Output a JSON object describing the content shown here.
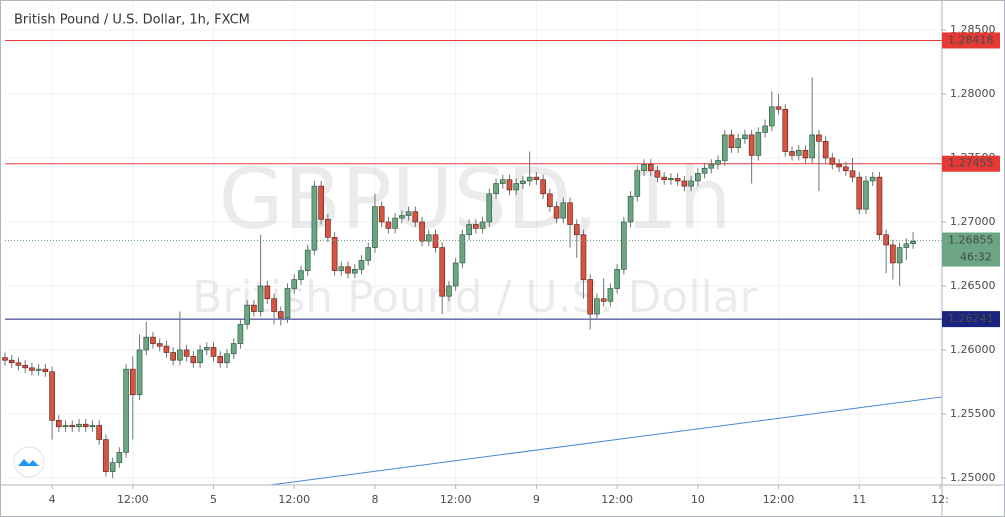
{
  "chart_data": {
    "type": "candlestick",
    "title": "British Pound / U.S. Dollar, 1h, FXCM",
    "watermark": "GBPUSD, 1h",
    "watermark_subtitle": "British Pound / U.S. Dollar",
    "up_color": "#6ba583",
    "down_color": "#d75442",
    "xlim": [
      -7,
      132.3
    ],
    "ylim": [
      1.24945,
      1.28734
    ],
    "grid": true,
    "xticks": [
      {
        "value": 0,
        "label": "4"
      },
      {
        "value": 12,
        "label": "12:00"
      },
      {
        "value": 24,
        "label": "5"
      },
      {
        "value": 36,
        "label": "12:00"
      },
      {
        "value": 48,
        "label": "8"
      },
      {
        "value": 60,
        "label": "12:00"
      },
      {
        "value": 72,
        "label": "9"
      },
      {
        "value": 84,
        "label": "12:00"
      },
      {
        "value": 96,
        "label": "10"
      },
      {
        "value": 108,
        "label": "12:00"
      },
      {
        "value": 120,
        "label": "11"
      },
      {
        "value": 132,
        "label": "12:"
      }
    ],
    "yticks": [
      {
        "value": 1.25,
        "label": "1.25000"
      },
      {
        "value": 1.255,
        "label": "1.25500"
      },
      {
        "value": 1.26,
        "label": "1.26000"
      },
      {
        "value": 1.265,
        "label": "1.26500"
      },
      {
        "value": 1.27,
        "label": "1.27000"
      },
      {
        "value": 1.275,
        "label": "1.27500"
      },
      {
        "value": 1.28,
        "label": "1.28000"
      },
      {
        "value": 1.285,
        "label": "1.28500"
      }
    ],
    "x": [
      -7,
      -6,
      -5,
      -4,
      -3,
      -2,
      -1,
      0,
      1,
      2,
      3,
      4,
      5,
      6,
      7,
      8,
      9,
      10,
      11,
      12,
      13,
      14,
      15,
      16,
      17,
      18,
      19,
      20,
      21,
      22,
      23,
      24,
      25,
      26,
      27,
      28,
      29,
      30,
      31,
      32,
      33,
      34,
      35,
      36,
      37,
      38,
      39,
      40,
      41,
      42,
      43,
      44,
      45,
      46,
      47,
      48,
      49,
      50,
      51,
      52,
      53,
      54,
      55,
      56,
      57,
      58,
      59,
      60,
      61,
      62,
      63,
      64,
      65,
      66,
      67,
      68,
      69,
      70,
      71,
      72,
      73,
      74,
      75,
      76,
      77,
      78,
      79,
      80,
      81,
      82,
      83,
      84,
      85,
      86,
      87,
      88,
      89,
      90,
      91,
      92,
      93,
      94,
      95,
      96,
      97,
      98,
      99,
      100,
      101,
      102,
      103,
      104,
      105,
      106,
      107,
      108,
      109,
      110,
      111,
      112,
      113,
      114,
      115,
      116,
      117,
      118,
      119,
      120,
      121,
      122,
      123,
      124,
      125,
      126,
      127,
      128
    ],
    "open": [
      1.2594,
      1.2592,
      1.259,
      1.2588,
      1.2586,
      1.2584,
      1.2585,
      1.2583,
      1.2545,
      1.254,
      1.2541,
      1.254,
      1.2542,
      1.254,
      1.2541,
      1.253,
      1.2505,
      1.2512,
      1.252,
      1.2585,
      1.2565,
      1.26,
      1.261,
      1.2605,
      1.2603,
      1.2598,
      1.2592,
      1.26,
      1.2595,
      1.259,
      1.26,
      1.2602,
      1.2595,
      1.259,
      1.2597,
      1.2605,
      1.262,
      1.2635,
      1.263,
      1.265,
      1.264,
      1.263,
      1.2625,
      1.2648,
      1.2655,
      1.2662,
      1.2678,
      1.2728,
      1.2702,
      1.2688,
      1.2662,
      1.2665,
      1.266,
      1.2663,
      1.267,
      1.268,
      1.2712,
      1.27,
      1.2695,
      1.2703,
      1.2705,
      1.2708,
      1.27,
      1.2685,
      1.269,
      1.268,
      1.2642,
      1.265,
      1.2668,
      1.269,
      1.2698,
      1.2695,
      1.27,
      1.2722,
      1.273,
      1.2733,
      1.2725,
      1.273,
      1.2732,
      1.2735,
      1.2733,
      1.2722,
      1.2712,
      1.2703,
      1.2715,
      1.2698,
      1.269,
      1.2655,
      1.2628,
      1.264,
      1.2638,
      1.2648,
      1.2663,
      1.27,
      1.272,
      1.274,
      1.2745,
      1.274,
      1.2735,
      1.2733,
      1.2734,
      1.2732,
      1.2728,
      1.2732,
      1.2738,
      1.2742,
      1.2745,
      1.2748,
      1.2768,
      1.2758,
      1.2765,
      1.2768,
      1.2752,
      1.277,
      1.2775,
      1.279,
      1.2788,
      1.2755,
      1.2752,
      1.2756,
      1.275,
      1.2768,
      1.2763,
      1.275,
      1.2745,
      1.2743,
      1.274,
      1.2735,
      1.271,
      1.2732,
      1.2735,
      1.269,
      1.2682,
      1.2668,
      1.268,
      1.2683
    ],
    "high": [
      1.2598,
      1.2596,
      1.2594,
      1.2592,
      1.259,
      1.2589,
      1.2589,
      1.2587,
      1.2549,
      1.2545,
      1.2545,
      1.2546,
      1.2546,
      1.2545,
      1.2545,
      1.2534,
      1.2516,
      1.2524,
      1.2589,
      1.2595,
      1.2612,
      1.2622,
      1.2614,
      1.2609,
      1.2607,
      1.2602,
      1.263,
      1.2604,
      1.2599,
      1.2604,
      1.2606,
      1.2606,
      1.2599,
      1.2601,
      1.2609,
      1.2624,
      1.2639,
      1.2639,
      1.269,
      1.2654,
      1.2644,
      1.2634,
      1.2652,
      1.2659,
      1.2666,
      1.2682,
      1.2732,
      1.2732,
      1.2706,
      1.2692,
      1.2669,
      1.2669,
      1.2667,
      1.2674,
      1.2684,
      1.2722,
      1.2716,
      1.2704,
      1.2707,
      1.2709,
      1.2712,
      1.2712,
      1.2704,
      1.2694,
      1.2694,
      1.2684,
      1.2654,
      1.2672,
      1.2694,
      1.2702,
      1.2702,
      1.2704,
      1.2726,
      1.2734,
      1.2737,
      1.2737,
      1.2734,
      1.2736,
      1.2755,
      1.2739,
      1.2737,
      1.2726,
      1.2716,
      1.2719,
      1.2719,
      1.2702,
      1.2694,
      1.2659,
      1.2644,
      1.2656,
      1.2652,
      1.2667,
      1.2704,
      1.2724,
      1.2744,
      1.2749,
      1.2749,
      1.2744,
      1.2739,
      1.2738,
      1.2738,
      1.2736,
      1.2736,
      1.2742,
      1.2746,
      1.2749,
      1.2752,
      1.2772,
      1.2772,
      1.2769,
      1.2772,
      1.2772,
      1.2774,
      1.278,
      1.2802,
      1.28,
      1.2792,
      1.2759,
      1.276,
      1.276,
      1.2813,
      1.2772,
      1.2767,
      1.2754,
      1.2749,
      1.2747,
      1.275,
      1.2739,
      1.2736,
      1.2739,
      1.2739,
      1.2694,
      1.2686,
      1.2684,
      1.2687,
      1.2692
    ],
    "low": [
      1.2588,
      1.2586,
      1.2584,
      1.2582,
      1.258,
      1.258,
      1.2579,
      1.253,
      1.2536,
      1.2536,
      1.2536,
      1.2536,
      1.2536,
      1.2536,
      1.2526,
      1.2501,
      1.25,
      1.2508,
      1.2516,
      1.253,
      1.2561,
      1.2596,
      1.2601,
      1.2599,
      1.2594,
      1.2588,
      1.2588,
      1.2591,
      1.2586,
      1.2586,
      1.2596,
      1.2591,
      1.2586,
      1.2586,
      1.2593,
      1.2601,
      1.2616,
      1.2626,
      1.2626,
      1.2636,
      1.262,
      1.2619,
      1.2621,
      1.2644,
      1.2651,
      1.2658,
      1.2674,
      1.2698,
      1.2684,
      1.2658,
      1.2658,
      1.2656,
      1.2656,
      1.2659,
      1.2666,
      1.2676,
      1.2696,
      1.2691,
      1.2691,
      1.2699,
      1.2701,
      1.2696,
      1.2681,
      1.2681,
      1.2676,
      1.2628,
      1.2638,
      1.2646,
      1.2664,
      1.2686,
      1.2691,
      1.2691,
      1.2696,
      1.2718,
      1.2726,
      1.2721,
      1.2721,
      1.2726,
      1.2728,
      1.2729,
      1.2718,
      1.2708,
      1.2699,
      1.2699,
      1.268,
      1.2672,
      1.264,
      1.2616,
      1.2624,
      1.2634,
      1.2634,
      1.2644,
      1.2659,
      1.2696,
      1.2716,
      1.2736,
      1.2736,
      1.2731,
      1.2729,
      1.2729,
      1.2728,
      1.2724,
      1.2724,
      1.2728,
      1.2734,
      1.2738,
      1.2741,
      1.2744,
      1.2754,
      1.2754,
      1.2761,
      1.273,
      1.2748,
      1.2766,
      1.2771,
      1.2784,
      1.2751,
      1.2748,
      1.2748,
      1.2746,
      1.2746,
      1.2724,
      1.2746,
      1.2741,
      1.2739,
      1.2736,
      1.2731,
      1.2706,
      1.2706,
      1.2728,
      1.2686,
      1.266,
      1.2655,
      1.265,
      1.267,
      1.2679
    ],
    "close": [
      1.2592,
      1.259,
      1.2588,
      1.2586,
      1.2584,
      1.2585,
      1.2583,
      1.2545,
      1.254,
      1.2541,
      1.254,
      1.2542,
      1.254,
      1.2541,
      1.253,
      1.2505,
      1.2512,
      1.252,
      1.2585,
      1.2565,
      1.26,
      1.261,
      1.2605,
      1.2603,
      1.2598,
      1.2592,
      1.26,
      1.2595,
      1.259,
      1.26,
      1.2602,
      1.2595,
      1.259,
      1.2597,
      1.2605,
      1.262,
      1.2635,
      1.263,
      1.265,
      1.264,
      1.263,
      1.2625,
      1.2648,
      1.2655,
      1.2662,
      1.2678,
      1.2728,
      1.2702,
      1.2688,
      1.2662,
      1.2665,
      1.266,
      1.2663,
      1.267,
      1.268,
      1.2712,
      1.27,
      1.2695,
      1.2703,
      1.2705,
      1.2708,
      1.27,
      1.2685,
      1.269,
      1.268,
      1.2642,
      1.265,
      1.2668,
      1.269,
      1.2698,
      1.2695,
      1.27,
      1.2722,
      1.273,
      1.2733,
      1.2725,
      1.273,
      1.2732,
      1.2735,
      1.2733,
      1.2722,
      1.2712,
      1.2703,
      1.2715,
      1.2698,
      1.269,
      1.2655,
      1.2628,
      1.264,
      1.2638,
      1.2648,
      1.2663,
      1.27,
      1.272,
      1.274,
      1.2745,
      1.274,
      1.2735,
      1.2733,
      1.2734,
      1.2732,
      1.2728,
      1.2732,
      1.2738,
      1.2742,
      1.2745,
      1.2748,
      1.2768,
      1.2758,
      1.2765,
      1.2768,
      1.2752,
      1.277,
      1.2775,
      1.279,
      1.2788,
      1.2755,
      1.2752,
      1.2756,
      1.275,
      1.2768,
      1.2763,
      1.275,
      1.2745,
      1.2743,
      1.274,
      1.2735,
      1.271,
      1.2732,
      1.2735,
      1.269,
      1.2682,
      1.2668,
      1.268,
      1.2683,
      1.2685
    ],
    "levels": [
      {
        "value": 1.28418,
        "color": "#e53935"
      },
      {
        "value": 1.27455,
        "color": "#e53935"
      },
      {
        "value": 1.26241,
        "color": "#1a237e"
      }
    ],
    "current_price": 1.26855,
    "countdown": "46:32",
    "current_color": "#6ba583",
    "trendline": {
      "x": [
        32.4,
        132.3
      ],
      "y": [
        1.24945,
        1.25633
      ],
      "color": "#4a86d8"
    }
  }
}
